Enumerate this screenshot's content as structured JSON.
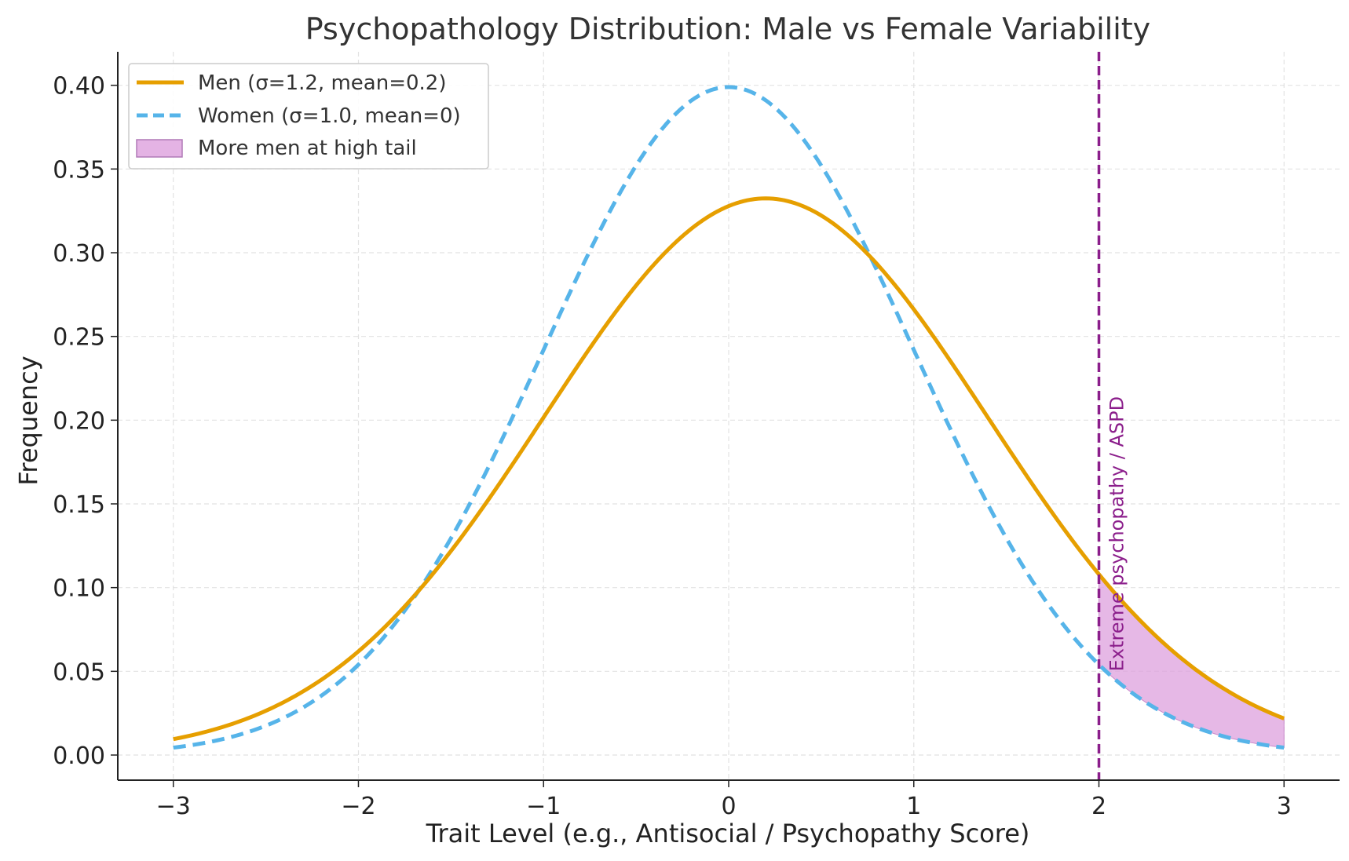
{
  "chart_data": {
    "type": "line",
    "title": "Psychopathology Distribution: Male vs Female Variability",
    "xlabel": "Trait Level (e.g., Antisocial / Psychopathy Score)",
    "ylabel": "Frequency",
    "xlim": [
      -3.3,
      3.3
    ],
    "ylim": [
      -0.015,
      0.42
    ],
    "xticks": [
      -3,
      -2,
      -1,
      0,
      1,
      2,
      3
    ],
    "xtick_labels": [
      "−3",
      "−2",
      "−1",
      "0",
      "1",
      "2",
      "3"
    ],
    "yticks": [
      0.0,
      0.05,
      0.1,
      0.15,
      0.2,
      0.25,
      0.3,
      0.35,
      0.4
    ],
    "ytick_labels": [
      "0.00",
      "0.05",
      "0.10",
      "0.15",
      "0.20",
      "0.25",
      "0.30",
      "0.35",
      "0.40"
    ],
    "grid": true,
    "legend_position": "top-left",
    "x_range": [
      -3,
      3
    ],
    "series": [
      {
        "name": "Men (σ=1.2, mean=0.2)",
        "distribution": "normal",
        "mean": 0.2,
        "sigma": 1.2,
        "color": "#E69F00",
        "style": "solid",
        "sample_points": [
          [
            -3,
            0.0095
          ],
          [
            -2,
            0.062
          ],
          [
            -1,
            0.201
          ],
          [
            0,
            0.329
          ],
          [
            0.2,
            0.332
          ],
          [
            1,
            0.267
          ],
          [
            2,
            0.108
          ],
          [
            3,
            0.022
          ]
        ]
      },
      {
        "name": "Women (σ=1.0, mean=0)",
        "distribution": "normal",
        "mean": 0.0,
        "sigma": 1.0,
        "color": "#56B4E9",
        "style": "dashed",
        "sample_points": [
          [
            -3,
            0.0044
          ],
          [
            -2,
            0.054
          ],
          [
            -1,
            0.242
          ],
          [
            0,
            0.399
          ],
          [
            1,
            0.242
          ],
          [
            2,
            0.054
          ],
          [
            3,
            0.0044
          ]
        ]
      }
    ],
    "fill_region": {
      "name": "More men at high tail",
      "x_from": 2,
      "x_to": 3,
      "color": "#DDA0DD"
    },
    "annotations": [
      {
        "type": "vline",
        "x": 2,
        "label": "Extreme psychopathy / ASPD",
        "color": "#8B1E8B"
      }
    ]
  }
}
